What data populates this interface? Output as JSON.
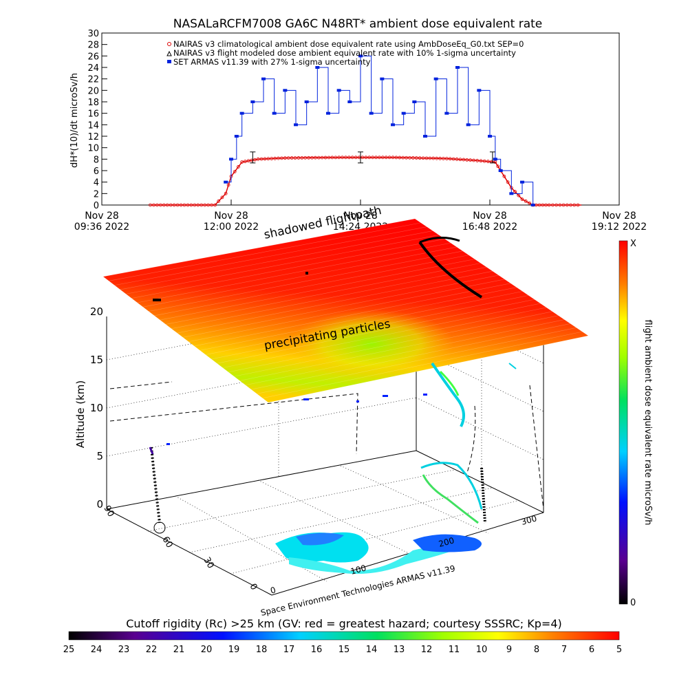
{
  "title": "NASALaRCFM7008   GA6C N48RT* ambient dose equivalent rate",
  "chart_data": [
    {
      "type": "line",
      "title": "NASALaRCFM7008   GA6C N48RT* ambient dose equivalent rate",
      "ylabel": "dH*(10)/dt microSv/h",
      "ylim": [
        0,
        30
      ],
      "yticks": [
        "0",
        "2",
        "4",
        "6",
        "8",
        "10",
        "12",
        "14",
        "16",
        "18",
        "20",
        "22",
        "24",
        "26",
        "28",
        "30"
      ],
      "xticks": [
        {
          "line1": "Nov 28",
          "line2": "09:36 2022"
        },
        {
          "line1": "Nov 28",
          "line2": "12:00 2022"
        },
        {
          "line1": "Nov 28",
          "line2": "14:24 2022"
        },
        {
          "line1": "Nov 28",
          "line2": "16:48 2022"
        },
        {
          "line1": "Nov 28",
          "line2": "19:12 2022"
        }
      ],
      "legend": [
        "NAIRAS v3 climatological ambient dose equivalent rate using AmbDoseEq_G0.txt SEP=0",
        "NAIRAS v3 flight modeled dose ambient equivalent rate with 10% 1-sigma uncertainty",
        "SET ARMAS v11.39 with 27% 1-sigma uncertainty"
      ],
      "series": [
        {
          "name": "NAIRAS v3 climatological ambient dose equivalent rate using AmbDoseEq_G0.txt SEP=0",
          "color": "#dd0000",
          "x_hours": [
            10.5,
            11.7,
            11.9,
            12.0,
            12.2,
            12.5,
            13.0,
            14.0,
            15.0,
            16.0,
            16.5,
            16.9,
            17.0,
            17.2,
            17.4,
            17.6,
            17.9,
            18.5
          ],
          "values": [
            0,
            0,
            2,
            5,
            7.5,
            8,
            8.2,
            8.3,
            8.3,
            8.1,
            7.8,
            7.5,
            6,
            3,
            1,
            0,
            0,
            0
          ]
        },
        {
          "name": "SET ARMAS v11.39 with 27% 1-sigma uncertainty",
          "color": "#0022dd",
          "x_hours": [
            11.9,
            12.0,
            12.1,
            12.2,
            12.4,
            12.6,
            12.8,
            13.0,
            13.2,
            13.4,
            13.6,
            13.8,
            14.0,
            14.2,
            14.4,
            14.6,
            14.8,
            15.0,
            15.2,
            15.4,
            15.6,
            15.8,
            16.0,
            16.2,
            16.4,
            16.6,
            16.8,
            16.9,
            17.0,
            17.2,
            17.4,
            17.6
          ],
          "values": [
            4,
            8,
            12,
            16,
            18,
            22,
            16,
            20,
            14,
            18,
            24,
            16,
            20,
            18,
            26,
            16,
            22,
            14,
            16,
            18,
            12,
            22,
            16,
            24,
            14,
            20,
            12,
            8,
            6,
            2,
            4,
            0
          ]
        }
      ],
      "error_bars_hours": [
        12.4,
        14.4,
        16.85
      ]
    },
    {
      "type": "scatter",
      "title": "",
      "zlabel": "Altitude (km)",
      "zticks": [
        "0",
        "5",
        "10",
        "15",
        "20"
      ],
      "lat_ticks": [
        "0",
        "30",
        "60",
        "90"
      ],
      "lon_ticks": [
        "0",
        "100",
        "200",
        "300"
      ],
      "annotations": [
        "shadowed flightpath",
        "precipitating particles"
      ],
      "credit": "Space Environment Technologies ARMAS v11.39",
      "colorbar": {
        "label": "flight ambient dose equivalent rate microSv/h",
        "top": "X",
        "bottom": "0"
      }
    },
    {
      "type": "heatmap",
      "title": "Cutoff rigidity (Rc) >25 km (GV: red = greatest hazard; courtesy SSSRC; Kp=4)",
      "ticks": [
        "25",
        "24",
        "23",
        "22",
        "21",
        "20",
        "19",
        "18",
        "17",
        "16",
        "15",
        "14",
        "13",
        "12",
        "11",
        "10",
        "9",
        "8",
        "7",
        "6",
        "5"
      ]
    }
  ]
}
